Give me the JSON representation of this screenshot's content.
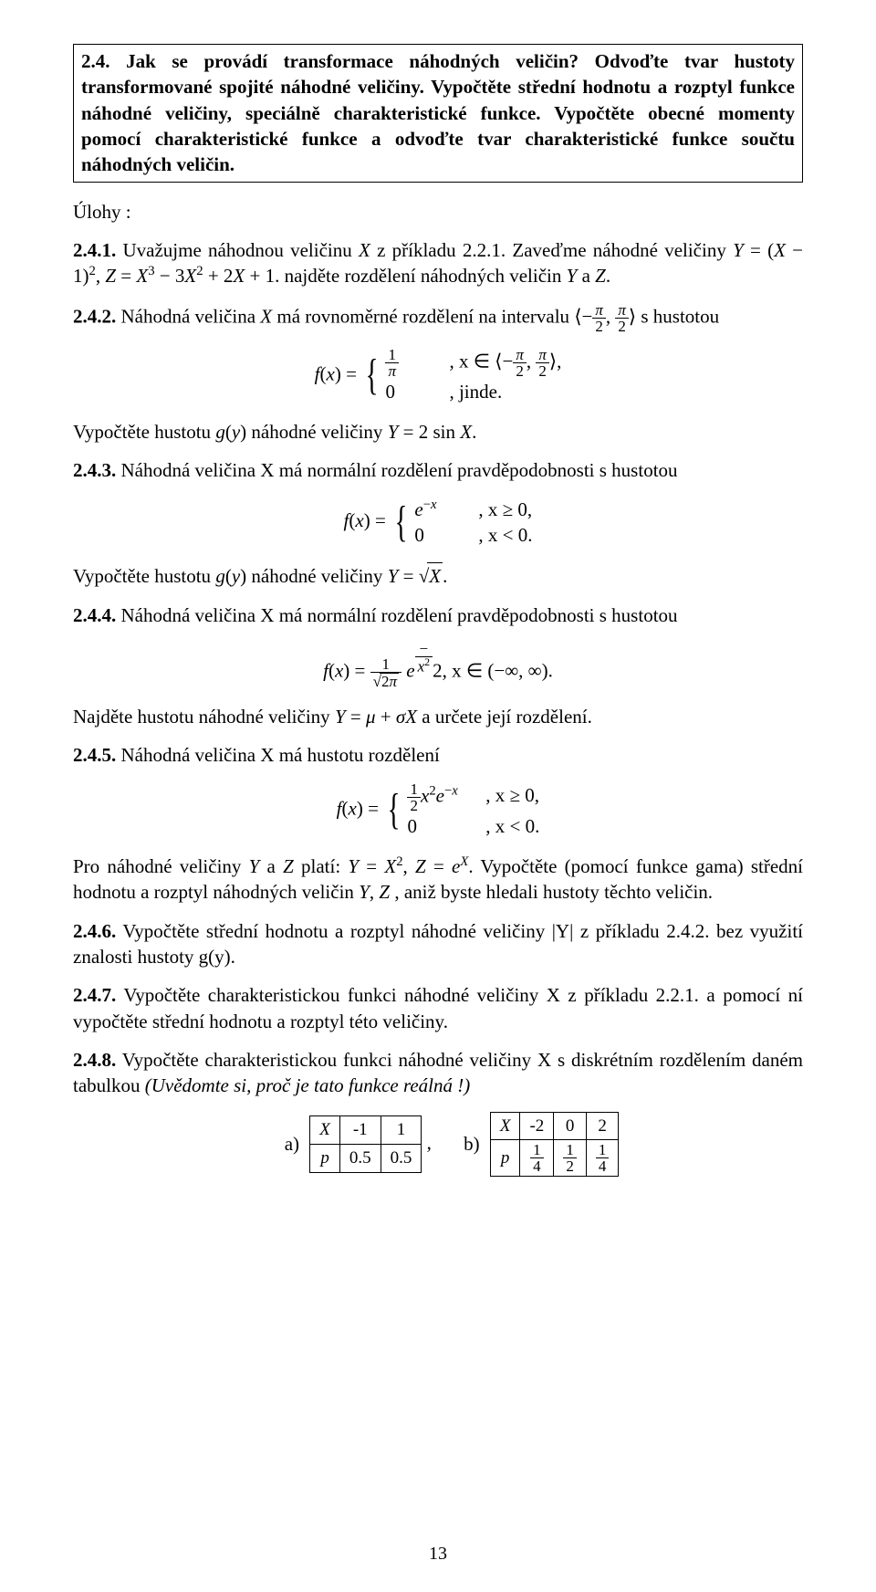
{
  "box": {
    "text": "2.4. Jak se provádí transformace náhodných veličin? Odvoďte tvar hustoty transformované spojité náhodné veličiny. Vypočtěte střední hodnotu a rozptyl funkce náhodné veličiny, speciálně charakteristické funkce. Vypočtěte obecné momenty pomocí charakteristické funkce a odvoďte tvar charakteristické funkce součtu náhodných veličin."
  },
  "ulohy_label": "Úlohy :",
  "ex241": {
    "num": "2.4.1.",
    "text_a": " Uvažujme náhodnou veličinu ",
    "text_b": " z příkladu 2.2.1. Zaveďme náhodné veličiny ",
    "text_c": " najděte rozdělení náhodných veličin ",
    "text_d": " a "
  },
  "ex242": {
    "num": "2.4.2.",
    "text_a": " Náhodná veličina ",
    "text_b": " má rovnoměrné rozdělení na intervalu ",
    "text_c": " s hustotou",
    "post": "Vypočtěte hustotu ",
    "post2": " náhodné veličiny "
  },
  "ex243": {
    "num": "2.4.3.",
    "text": " Náhodná veličina X má normální rozdělení pravděpodobnosti s hustotou",
    "post": "Vypočtěte hustotu ",
    "post2": " náhodné veličiny "
  },
  "ex244": {
    "num": "2.4.4.",
    "text": " Náhodná veličina X má normální rozdělení pravděpodobnosti s hustotou",
    "post": "Najděte hustotu náhodné veličiny ",
    "post2": " a určete její rozdělení."
  },
  "ex245": {
    "num": "2.4.5.",
    "text": " Náhodná veličina X má hustotu rozdělení",
    "post_a": "Pro náhodné veličiny ",
    "post_b": " platí: ",
    "post_c": " Vypočtěte (pomocí funkce gama) střední hodnotu a rozptyl náhodných veličin ",
    "post_d": ", aniž byste hledali hustoty těchto veličin."
  },
  "ex246": {
    "num": "2.4.6.",
    "text": " Vypočtěte střední hodnotu a rozptyl náhodné veličiny |Y| z příkladu 2.4.2. bez využití znalosti hustoty g(y)."
  },
  "ex247": {
    "num": "2.4.7.",
    "text": " Vypočtěte charakteristickou funkci náhodné veličiny X z příkladu 2.2.1. a pomocí ní vypočtěte střední hodnotu a rozptyl této veličiny."
  },
  "ex248": {
    "num": "2.4.8.",
    "text_a": " Vypočtěte charakteristickou funkci náhodné veličiny X s diskrétním rozdělením daném tabulkou ",
    "text_b": "(Uvědomte si, proč je tato funkce reálná !)"
  },
  "tables": {
    "a_label": "a)",
    "b_label": "b)",
    "a": {
      "h1": "X",
      "h2": "-1",
      "h3": "1",
      "r1": "p",
      "r2": "0.5",
      "r3": "0.5"
    },
    "b": {
      "h1": "X",
      "h2": "-2",
      "h3": "0",
      "h4": "2",
      "r1": "p"
    }
  },
  "page_number": "13",
  "eq_jinde": ", jinde.",
  "eq_eps": ", x ∈ ⟨−",
  "eq_close": "⟩,",
  "eq_xge0": ", x ≥ 0,",
  "eq_xlt0": ", x < 0.",
  "eq_range_all": "2, x ∈ (−∞, ∞)."
}
